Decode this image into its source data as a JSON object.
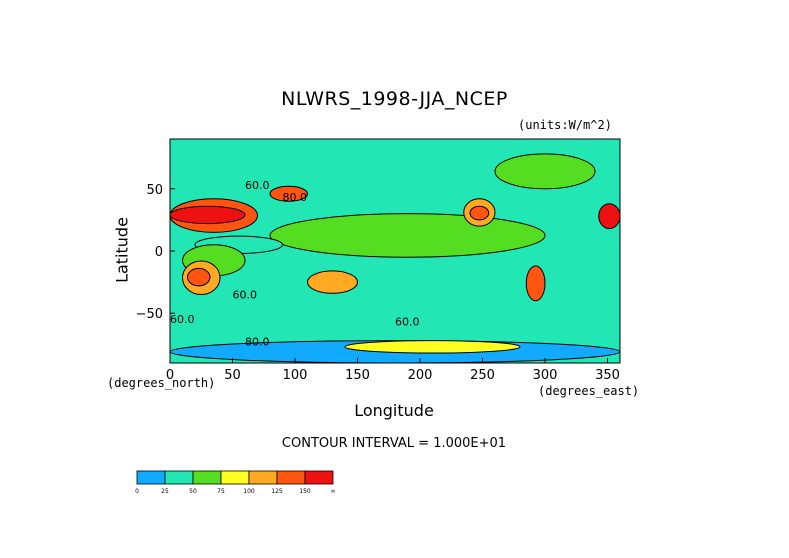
{
  "chart_data": {
    "type": "heatmap",
    "title": "NLWRS_1998-JJA_NCEP",
    "units": "(units:W/m^2)",
    "xlabel": "Longitude",
    "ylabel": "Latitude",
    "x_unit_label": "(degrees_east)",
    "y_unit_label": "(degrees_north)",
    "xlim": [
      0,
      360
    ],
    "ylim": [
      -90,
      90
    ],
    "x_ticks": [
      0,
      50,
      100,
      150,
      200,
      250,
      300,
      350
    ],
    "y_ticks": [
      -50,
      0,
      50
    ],
    "contour_interval_text": "CONTOUR INTERVAL = 1.000E+01",
    "contour_labels": [
      "60.0",
      "80.0",
      "60.0",
      "60.0",
      "60.0",
      "80.0"
    ],
    "colorbar": {
      "labels": [
        "0",
        "25",
        "50",
        "75",
        "100",
        "125",
        "150",
        "∞"
      ],
      "colors": [
        "#11aaff",
        "#22e6b4",
        "#55dd22",
        "#ffff22",
        "#ffaa22",
        "#ff5511",
        "#ee1111"
      ]
    },
    "field_regions": [
      {
        "level": 1,
        "lon": [
          0,
          360
        ],
        "lat": [
          -90,
          90
        ]
      },
      {
        "level": 2,
        "lon": [
          80,
          300
        ],
        "lat": [
          -5,
          30
        ]
      },
      {
        "level": 1,
        "lon": [
          20,
          90
        ],
        "lat": [
          -2,
          12
        ]
      },
      {
        "level": 2,
        "lon": [
          10,
          60
        ],
        "lat": [
          -20,
          5
        ]
      },
      {
        "level": 5,
        "lon": [
          0,
          70
        ],
        "lat": [
          15,
          42
        ]
      },
      {
        "level": 6,
        "lon": [
          0,
          60
        ],
        "lat": [
          22,
          36
        ]
      },
      {
        "level": 5,
        "lon": [
          80,
          110
        ],
        "lat": [
          40,
          52
        ]
      },
      {
        "level": 4,
        "lon": [
          10,
          40
        ],
        "lat": [
          -35,
          -8
        ]
      },
      {
        "level": 5,
        "lon": [
          14,
          32
        ],
        "lat": [
          -28,
          -14
        ]
      },
      {
        "level": 4,
        "lon": [
          110,
          150
        ],
        "lat": [
          -34,
          -16
        ]
      },
      {
        "level": 4,
        "lon": [
          235,
          260
        ],
        "lat": [
          20,
          42
        ]
      },
      {
        "level": 5,
        "lon": [
          240,
          255
        ],
        "lat": [
          25,
          36
        ]
      },
      {
        "level": 5,
        "lon": [
          285,
          300
        ],
        "lat": [
          -40,
          -12
        ]
      },
      {
        "level": 6,
        "lon": [
          343,
          360
        ],
        "lat": [
          18,
          38
        ]
      },
      {
        "level": 2,
        "lon": [
          260,
          340
        ],
        "lat": [
          50,
          78
        ]
      },
      {
        "level": 0,
        "lon": [
          0,
          360
        ],
        "lat": [
          -90,
          -72
        ]
      },
      {
        "level": 3,
        "lon": [
          140,
          280
        ],
        "lat": [
          -82,
          -72
        ]
      }
    ]
  }
}
